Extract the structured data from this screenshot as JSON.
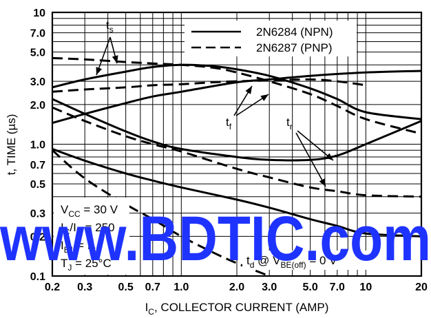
{
  "chart_data": {
    "type": "line",
    "x_scale": "log",
    "y_scale": "log",
    "xlim": [
      0.2,
      20
    ],
    "ylim": [
      0.1,
      10
    ],
    "grid": true,
    "xlabel": {
      "main": "I",
      "sub": "C",
      "rest": ", COLLECTOR CURRENT (AMP)"
    },
    "ylabel": "t, TIME (µs)",
    "x_tick_values": [
      0.2,
      0.3,
      0.5,
      0.7,
      1.0,
      2.0,
      3.0,
      5.0,
      7.0,
      10,
      20
    ],
    "x_tick_labels": [
      "0.2",
      "0.3",
      "0.5",
      "0.7",
      "1.0",
      "2.0",
      "3.0",
      "5.0",
      "7.0",
      "10",
      "20"
    ],
    "y_tick_values": [
      0.1,
      0.2,
      0.3,
      0.5,
      0.7,
      1.0,
      2.0,
      3.0,
      5.0,
      7.0,
      10
    ],
    "y_tick_labels": [
      "0.1",
      "0.2",
      "0.3",
      "0.5",
      "0.7",
      "1.0",
      "2.0",
      "3.0",
      "5.0",
      "7.0",
      "10"
    ],
    "legend": {
      "placement": "top-right",
      "entries": [
        {
          "label": "2N6284 (NPN)",
          "style": "solid"
        },
        {
          "label": "2N6287 (PNP)",
          "style": "dashed"
        }
      ]
    },
    "series": [
      {
        "device": "NPN",
        "param": "ts",
        "style": "solid",
        "x": [
          0.2,
          0.3,
          0.5,
          0.7,
          1.0,
          1.5,
          2.0,
          3.0,
          5.0,
          7.0,
          10,
          20
        ],
        "y": [
          2.7,
          3.1,
          3.55,
          3.85,
          4.0,
          3.9,
          3.7,
          3.3,
          2.65,
          2.2,
          1.75,
          1.55
        ]
      },
      {
        "device": "PNP",
        "param": "ts",
        "style": "dashed",
        "x": [
          0.2,
          0.3,
          0.5,
          0.7,
          1.0,
          1.5,
          2.0,
          3.0,
          5.0,
          7.0,
          10,
          20
        ],
        "y": [
          4.5,
          4.4,
          4.2,
          4.1,
          4.0,
          3.8,
          3.5,
          3.0,
          2.4,
          1.95,
          1.55,
          1.2
        ]
      },
      {
        "device": "NPN",
        "param": "tf",
        "style": "solid",
        "x": [
          0.2,
          0.3,
          0.5,
          0.7,
          1.0,
          2.0,
          3.0,
          5.0,
          10,
          20
        ],
        "y": [
          1.45,
          1.7,
          2.05,
          2.3,
          2.5,
          2.95,
          3.1,
          3.3,
          3.5,
          3.6
        ]
      },
      {
        "device": "PNP",
        "param": "tf",
        "style": "dashed",
        "x": [
          0.2,
          0.3,
          0.5,
          0.7,
          1.0,
          1.5,
          2.0,
          3.0,
          5.0,
          7.0,
          10
        ],
        "y": [
          2.5,
          2.6,
          2.7,
          2.8,
          2.85,
          2.95,
          3.0,
          3.05,
          3.1,
          3.0,
          2.8
        ]
      },
      {
        "device": "NPN",
        "param": "tr",
        "style": "solid",
        "x": [
          0.2,
          0.3,
          0.5,
          0.7,
          1.0,
          2.0,
          3.0,
          5.0,
          7.0,
          10,
          20
        ],
        "y": [
          2.2,
          1.7,
          1.25,
          1.05,
          0.92,
          0.8,
          0.76,
          0.76,
          0.82,
          1.0,
          1.5
        ]
      },
      {
        "device": "PNP",
        "param": "tr",
        "style": "dashed",
        "x": [
          0.2,
          0.3,
          0.5,
          0.7,
          1.0,
          2.0,
          3.0,
          5.0,
          7.0,
          10,
          20
        ],
        "y": [
          1.9,
          1.5,
          1.15,
          1.0,
          0.88,
          0.65,
          0.56,
          0.47,
          0.44,
          0.41,
          0.4
        ]
      },
      {
        "device": "NPN",
        "param": "td",
        "style": "solid",
        "x": [
          0.2,
          0.3,
          0.5,
          0.7,
          1.0,
          2.0,
          3.0,
          5.0,
          7.0,
          10,
          20
        ],
        "y": [
          0.92,
          0.75,
          0.6,
          0.53,
          0.47,
          0.38,
          0.33,
          0.27,
          0.24,
          0.21,
          0.2
        ]
      },
      {
        "device": "PNP",
        "param": "td",
        "style": "dashed",
        "x": [
          0.2,
          0.3,
          0.5,
          0.7,
          1.0,
          1.5,
          2.0,
          3.0
        ],
        "y": [
          0.9,
          0.55,
          0.35,
          0.27,
          0.2,
          0.15,
          0.125,
          0.1
        ]
      }
    ],
    "annotations": [
      {
        "id": "ts",
        "main": "t",
        "sub": "s"
      },
      {
        "id": "tf",
        "main": "t",
        "sub": "f"
      },
      {
        "id": "tr",
        "main": "t",
        "sub": "r"
      },
      {
        "id": "td",
        "main": "t",
        "sub": "d",
        "rest": " @ V",
        "sub2": "BE(off)",
        "rest2": " = 0 V"
      }
    ],
    "conditions": [
      {
        "main": "V",
        "sub": "CC",
        "rest": " = 30 V"
      },
      {
        "main": "I",
        "sub": "C",
        "rest": "/I",
        "sub2": "B",
        "rest2": " = 250"
      },
      {
        "main": "I",
        "sub": "B1",
        "rest": " = I",
        "sub2": "B2",
        "rest2": ""
      },
      {
        "main": "T",
        "sub": "J",
        "rest": " = 25°C"
      }
    ]
  },
  "watermark": {
    "text": "www.BDTIC.com",
    "color": "#1f33ff"
  }
}
